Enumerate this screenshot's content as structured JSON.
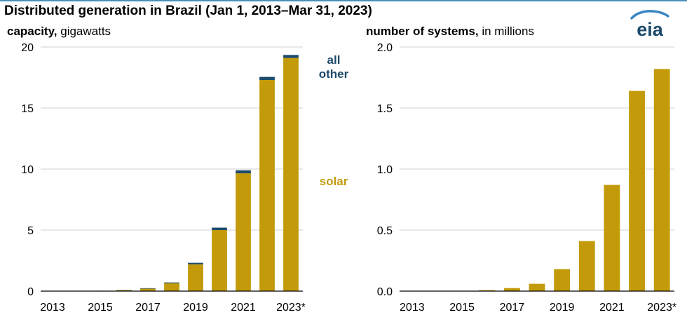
{
  "title": "Distributed generation in Brazil (Jan 1, 2013–Mar 31, 2023)",
  "logo_text": "eia",
  "colors": {
    "solar": "#c39a0a",
    "other": "#1c4a6b",
    "grid": "#d0d0d0",
    "axis": "#000000"
  },
  "chart_data": [
    {
      "type": "bar",
      "stacked": true,
      "title_bold": "capacity,",
      "title_rest": " gigawatts",
      "categories": [
        "2013",
        "2014",
        "2015",
        "2016",
        "2017",
        "2018",
        "2019",
        "2020",
        "2021",
        "2022",
        "2023*"
      ],
      "tick_labels": [
        "2013",
        "2015",
        "2017",
        "2019",
        "2021",
        "2023*"
      ],
      "series": [
        {
          "name": "solar",
          "values": [
            0.0,
            0.0,
            0.02,
            0.08,
            0.2,
            0.65,
            2.2,
            5.0,
            9.65,
            17.3,
            19.1
          ]
        },
        {
          "name": "all other",
          "values": [
            0.0,
            0.0,
            0.01,
            0.02,
            0.04,
            0.06,
            0.12,
            0.2,
            0.25,
            0.25,
            0.25
          ]
        }
      ],
      "legend": {
        "solar": "solar",
        "other_line1": "all",
        "other_line2": "other"
      },
      "ylim": [
        0,
        20
      ],
      "yticks": [
        "0",
        "5",
        "10",
        "15",
        "20"
      ],
      "ytick_values": [
        0,
        5,
        10,
        15,
        20
      ],
      "grid": true
    },
    {
      "type": "bar",
      "title_bold": "number of systems,",
      "title_rest": " in millions",
      "categories": [
        "2013",
        "2014",
        "2015",
        "2016",
        "2017",
        "2018",
        "2019",
        "2020",
        "2021",
        "2022",
        "2023*"
      ],
      "tick_labels": [
        "2013",
        "2015",
        "2017",
        "2019",
        "2021",
        "2023*"
      ],
      "values": [
        0.0,
        0.0,
        0.002,
        0.008,
        0.025,
        0.06,
        0.18,
        0.41,
        0.87,
        1.64,
        1.82
      ],
      "ylim": [
        0,
        2.0
      ],
      "yticks": [
        "0.0",
        "0.5",
        "1.0",
        "1.5",
        "2.0"
      ],
      "ytick_values": [
        0,
        0.5,
        1.0,
        1.5,
        2.0
      ],
      "grid": true
    }
  ]
}
